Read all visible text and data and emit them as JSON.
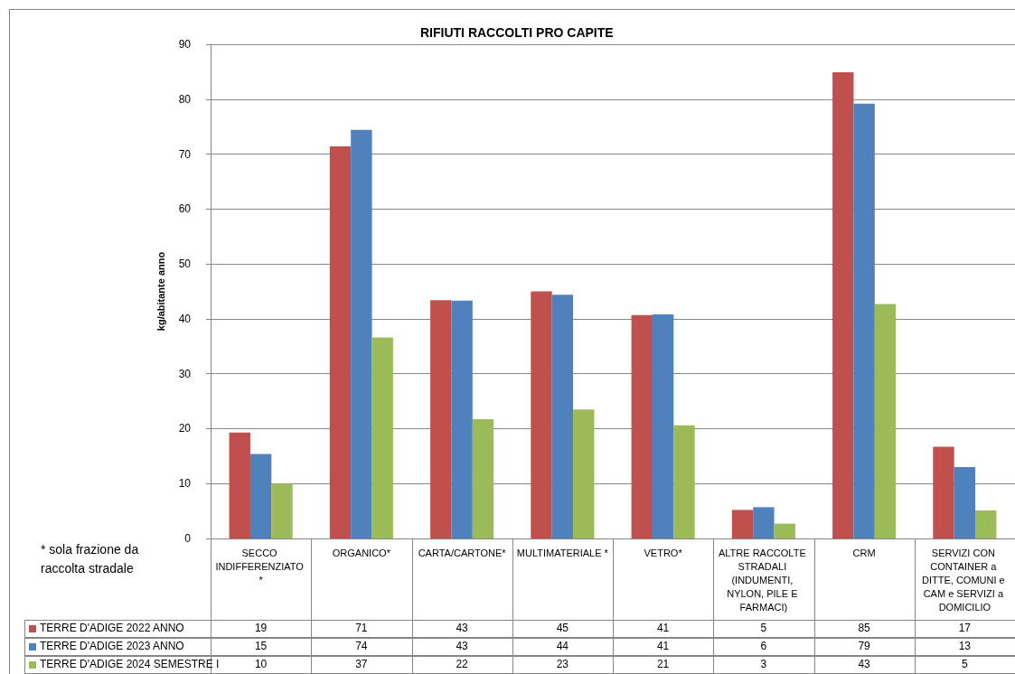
{
  "chart_data": {
    "type": "bar",
    "title": "RIFIUTI RACCOLTI PRO CAPITE",
    "ylabel": "kg/abitante anno",
    "annotations": [
      "* sola frazione da raccolta stradale"
    ],
    "categories": [
      "SECCO INDIFFERENZIATO *",
      "ORGANICO*",
      "CARTA/CARTONE*",
      "MULTIMATERIALE *",
      "VETRO*",
      "ALTRE RACCOLTE STRADALI (INDUMENTI, NYLON, PILE E FARMACI)",
      "CRM",
      "SERVIZI CON CONTAINER a DITTE, COMUNI e CAM e SERVIZI a DOMICILIO"
    ],
    "series": [
      {
        "name": "TERRE D'ADIGE 2022 ANNO",
        "color": "#c0504d",
        "values": [
          19.3,
          71.4,
          43.4,
          45.0,
          40.7,
          5.2,
          84.9,
          16.7
        ],
        "value_labels": [
          "19",
          "71",
          "43",
          "45",
          "41",
          "5",
          "85",
          "17"
        ]
      },
      {
        "name": "TERRE D'ADIGE 2023 ANNO",
        "color": "#4f81bd",
        "values": [
          15.4,
          74.4,
          43.3,
          44.4,
          40.8,
          5.7,
          79.2,
          13.0
        ],
        "value_labels": [
          "15",
          "74",
          "43",
          "44",
          "41",
          "6",
          "79",
          "13"
        ]
      },
      {
        "name": "TERRE D'ADIGE 2024 SEMESTRE I",
        "color": "#9bbb59",
        "values": [
          10.0,
          36.6,
          21.7,
          23.5,
          20.6,
          2.7,
          42.7,
          5.1
        ],
        "value_labels": [
          "10",
          "37",
          "22",
          "23",
          "21",
          "3",
          "43",
          "5"
        ]
      }
    ],
    "ylim": [
      0,
      90
    ],
    "yticks": [
      0,
      10,
      20,
      30,
      40,
      50,
      60,
      70,
      80,
      90
    ],
    "grid": "y",
    "legend": "bottom left"
  }
}
